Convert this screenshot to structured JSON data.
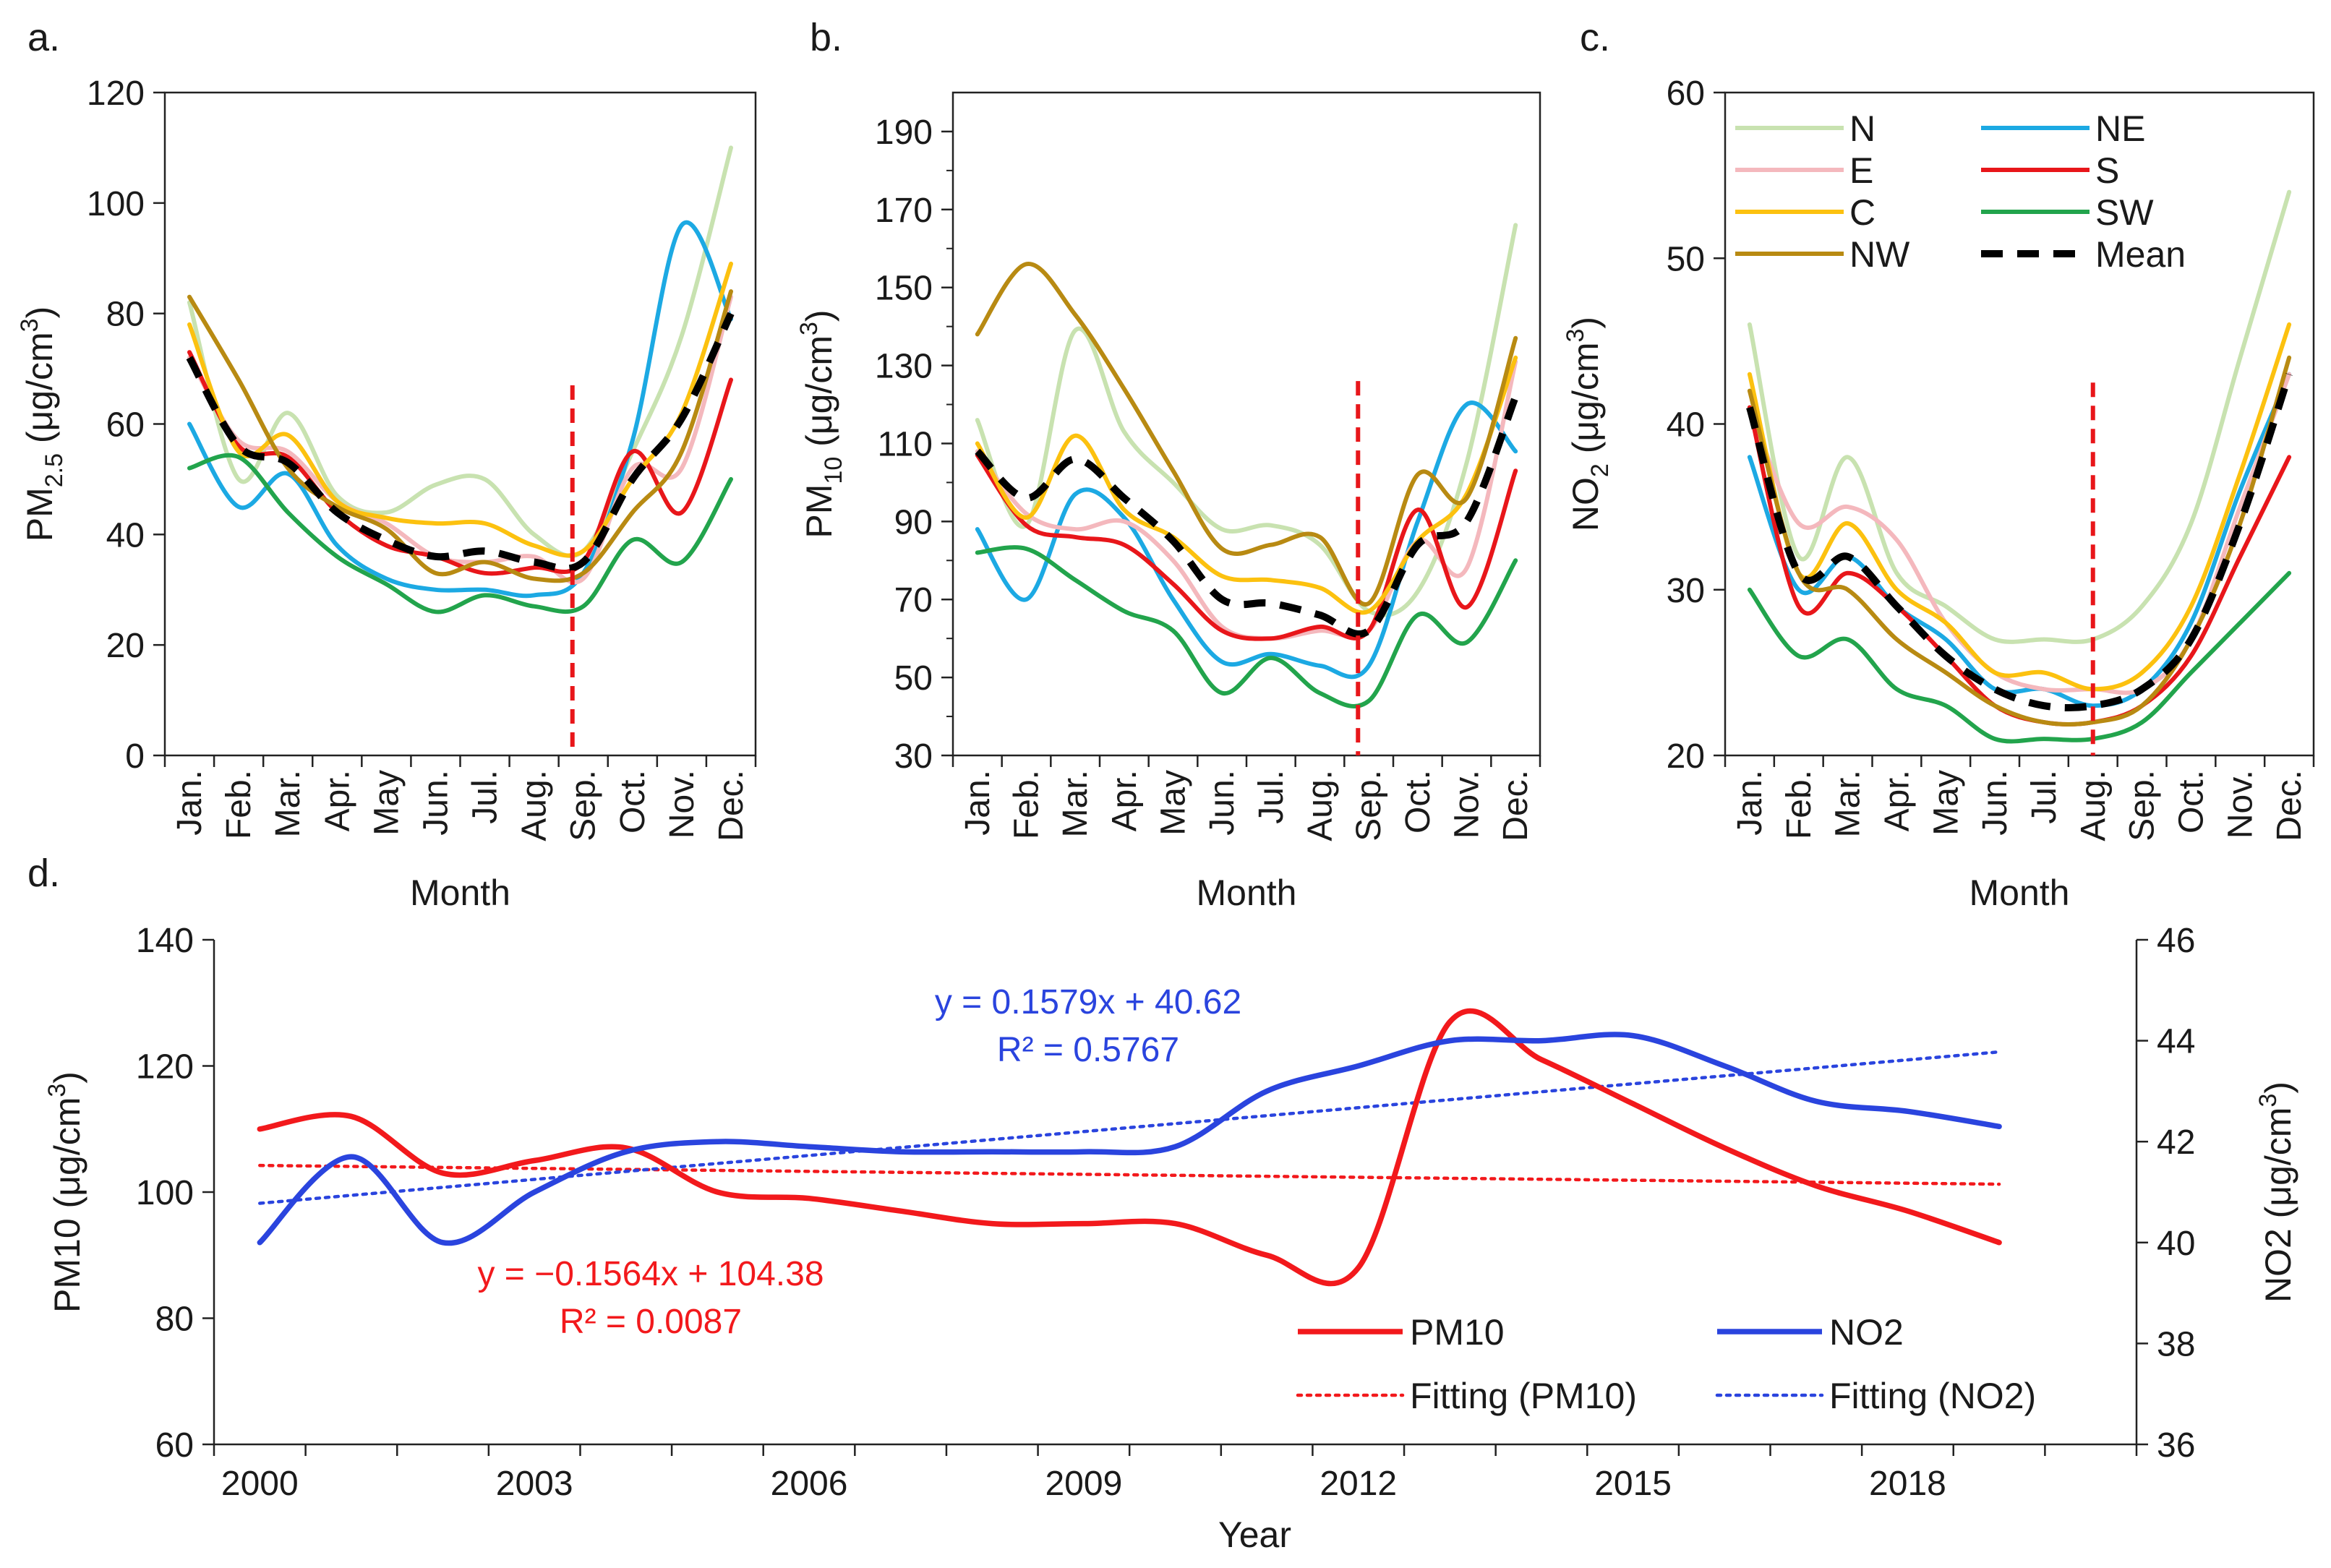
{
  "colors": {
    "N": "#c8e2b0",
    "NE": "#1ca9e3",
    "E": "#f4b8bd",
    "S": "#e8161a",
    "C": "#fcc10f",
    "SW": "#22a44c",
    "NW": "#b88a12",
    "Mean": "#000000",
    "cutoff": "#e8161a",
    "pm10_line": "#f2191c",
    "no2_line": "#2a44de"
  },
  "legend": {
    "entries": [
      {
        "key": "N",
        "label": "N",
        "dashed": false
      },
      {
        "key": "NE",
        "label": "NE",
        "dashed": false
      },
      {
        "key": "E",
        "label": "E",
        "dashed": false
      },
      {
        "key": "S",
        "label": "S",
        "dashed": false
      },
      {
        "key": "C",
        "label": "C",
        "dashed": false
      },
      {
        "key": "SW",
        "label": "SW",
        "dashed": false
      },
      {
        "key": "NW",
        "label": "NW",
        "dashed": false
      },
      {
        "key": "Mean",
        "label": "Mean",
        "dashed": true
      }
    ]
  },
  "panel_d_legend": {
    "pm10": "PM10",
    "no2": "NO2",
    "fit_pm10": "Fitting (PM10)",
    "fit_no2": "Fitting (NO2)"
  },
  "chart_data": [
    {
      "id": "a",
      "type": "line",
      "panel_label": "a.",
      "ylabel_main": "PM",
      "ylabel_sub": "2.5",
      "ylabel_tail": " (μg/cm",
      "ylabel_sup": "3",
      "ylabel_close": ")",
      "xlabel": "Month",
      "ylim": [
        0,
        120
      ],
      "yticks": [
        0,
        20,
        40,
        60,
        80,
        100,
        120
      ],
      "categories": [
        "Jan.",
        "Feb.",
        "Mar.",
        "Apr.",
        "May",
        "Jun.",
        "Jul.",
        "Aug.",
        "Sep.",
        "Oct.",
        "Nov.",
        "Dec."
      ],
      "cutoff_x": 7.78,
      "cutoff_ytop": 67,
      "series": [
        {
          "name": "N",
          "values": [
            82,
            50,
            62,
            47,
            44,
            49,
            50,
            40,
            37,
            55,
            76,
            110
          ]
        },
        {
          "name": "NE",
          "values": [
            60,
            45,
            51,
            38,
            32,
            30,
            30,
            29,
            33,
            57,
            96,
            79
          ]
        },
        {
          "name": "E",
          "values": [
            72,
            57,
            55,
            46,
            42,
            36,
            35,
            36,
            32,
            52,
            52,
            83
          ]
        },
        {
          "name": "S",
          "values": [
            73,
            56,
            54,
            44,
            38,
            36,
            33,
            34,
            35,
            55,
            44,
            68
          ]
        },
        {
          "name": "C",
          "values": [
            78,
            55,
            58,
            46,
            43,
            42,
            42,
            38,
            37,
            50,
            62,
            89
          ]
        },
        {
          "name": "SW",
          "values": [
            52,
            54,
            44,
            36,
            31,
            26,
            29,
            27,
            27,
            39,
            35,
            50
          ]
        },
        {
          "name": "NW",
          "values": [
            83,
            68,
            52,
            45,
            41,
            33,
            35,
            32,
            33,
            44,
            55,
            84
          ]
        },
        {
          "name": "Mean",
          "values": [
            72,
            56,
            53,
            44,
            39,
            36,
            37,
            35,
            35,
            50,
            61,
            80
          ]
        }
      ]
    },
    {
      "id": "b",
      "type": "line",
      "panel_label": "b.",
      "ylabel_main": "PM",
      "ylabel_sub": "10",
      "ylabel_tail": " (μg/cm",
      "ylabel_sup": "3",
      "ylabel_close": ")",
      "xlabel": "Month",
      "ylim": [
        30,
        200
      ],
      "yticks": [
        30,
        50,
        70,
        90,
        110,
        130,
        150,
        170,
        190
      ],
      "categories": [
        "Jan.",
        "Feb.",
        "Mar.",
        "Apr.",
        "May",
        "Jun.",
        "Jul.",
        "Aug.",
        "Sep.",
        "Oct.",
        "Nov.",
        "Dec."
      ],
      "cutoff_x": 7.78,
      "cutoff_ytop": 126,
      "series": [
        {
          "name": "N",
          "values": [
            116,
            89,
            139,
            113,
            100,
            88,
            89,
            84,
            67,
            72,
            105,
            166
          ]
        },
        {
          "name": "NE",
          "values": [
            88,
            70,
            97,
            91,
            70,
            54,
            56,
            53,
            53,
            90,
            120,
            108
          ]
        },
        {
          "name": "E",
          "values": [
            108,
            92,
            88,
            90,
            80,
            63,
            60,
            62,
            62,
            85,
            78,
            131
          ]
        },
        {
          "name": "S",
          "values": [
            107,
            89,
            86,
            84,
            74,
            62,
            60,
            63,
            62,
            93,
            68,
            103
          ]
        },
        {
          "name": "C",
          "values": [
            110,
            91,
            112,
            93,
            86,
            76,
            75,
            73,
            67,
            85,
            97,
            132
          ]
        },
        {
          "name": "SW",
          "values": [
            82,
            83,
            75,
            67,
            62,
            46,
            55,
            46,
            44,
            66,
            59,
            80
          ]
        },
        {
          "name": "NW",
          "values": [
            138,
            156,
            143,
            124,
            103,
            83,
            84,
            86,
            69,
            102,
            96,
            137
          ]
        },
        {
          "name": "Mean",
          "values": [
            108,
            96,
            106,
            96,
            85,
            70,
            69,
            66,
            62,
            84,
            90,
            122
          ]
        }
      ]
    },
    {
      "id": "c",
      "type": "line",
      "panel_label": "c.",
      "ylabel_main": "NO",
      "ylabel_sub": "2",
      "ylabel_tail": " (μg/cm",
      "ylabel_sup": "3",
      "ylabel_close": ")",
      "xlabel": "Month",
      "ylim": [
        20,
        60
      ],
      "yticks": [
        20,
        30,
        40,
        50,
        60
      ],
      "categories": [
        "Jan.",
        "Feb.",
        "Mar.",
        "Apr.",
        "May",
        "Jun.",
        "Jul.",
        "Aug.",
        "Sep.",
        "Oct.",
        "Nov.",
        "Dec."
      ],
      "cutoff_x": 7.0,
      "cutoff_ytop": 42.5,
      "series": [
        {
          "name": "N",
          "values": [
            46,
            32,
            38,
            31,
            29,
            27,
            27,
            27,
            29,
            34,
            44,
            54
          ]
        },
        {
          "name": "NE",
          "values": [
            38,
            30,
            32,
            29,
            27,
            24,
            24,
            23,
            24,
            28,
            36,
            43
          ]
        },
        {
          "name": "E",
          "values": [
            41,
            34,
            35,
            33,
            28,
            25,
            24,
            24,
            24,
            27,
            35,
            43
          ]
        },
        {
          "name": "S",
          "values": [
            41,
            29,
            31,
            29,
            26,
            23,
            22,
            22,
            23,
            26,
            32,
            38
          ]
        },
        {
          "name": "C",
          "values": [
            43,
            31,
            34,
            30,
            28,
            25,
            25,
            24,
            25,
            29,
            37,
            46
          ]
        },
        {
          "name": "SW",
          "values": [
            30,
            26,
            27,
            24,
            23,
            21,
            21,
            21,
            22,
            25,
            28,
            31
          ]
        },
        {
          "name": "NW",
          "values": [
            42,
            31,
            30,
            27,
            25,
            23,
            22,
            22,
            23,
            27,
            34,
            44
          ]
        },
        {
          "name": "Mean",
          "values": [
            41,
            31,
            32,
            29,
            26,
            24,
            23,
            23,
            24,
            27,
            34,
            43
          ]
        }
      ]
    },
    {
      "id": "d",
      "type": "line",
      "panel_label": "d.",
      "ylabel_left": "PM10 (μg/cm",
      "ylabel_left_sup": "3",
      "ylabel_left_close": ")",
      "ylabel_right": "NO2 (μg/cm",
      "ylabel_right_sup": "3",
      "ylabel_right_close": ")",
      "xlabel": "Year",
      "xlim": [
        1999,
        2020
      ],
      "xticks": [
        2000,
        2003,
        2006,
        2009,
        2012,
        2015,
        2018
      ],
      "ylim_left": [
        60,
        140
      ],
      "yticks_left": [
        60,
        80,
        100,
        120,
        140
      ],
      "ylim_right": [
        36,
        46
      ],
      "yticks_right": [
        36,
        38,
        40,
        42,
        44,
        46
      ],
      "series": [
        {
          "name": "PM10",
          "axis": "left",
          "x": [
            2000,
            2001,
            2002,
            2003,
            2004,
            2005,
            2006,
            2007,
            2008,
            2009,
            2010,
            2011,
            2012,
            2013,
            2014,
            2015,
            2016,
            2017,
            2018,
            2019
          ],
          "values": [
            110,
            112,
            103,
            105,
            107,
            100,
            99,
            97,
            95,
            95,
            95,
            90,
            88,
            127,
            121,
            114,
            107,
            101,
            97,
            92
          ]
        },
        {
          "name": "NO2",
          "axis": "right",
          "x": [
            2000,
            2001,
            2002,
            2003,
            2004,
            2005,
            2006,
            2007,
            2008,
            2009,
            2010,
            2011,
            2012,
            2013,
            2014,
            2015,
            2016,
            2017,
            2018,
            2019
          ],
          "values": [
            40.0,
            41.7,
            40.0,
            41.0,
            41.8,
            42.0,
            41.9,
            41.8,
            41.8,
            41.8,
            41.9,
            43.0,
            43.5,
            44.0,
            44.0,
            44.1,
            43.5,
            42.8,
            42.6,
            42.3
          ]
        }
      ],
      "fits": [
        {
          "name": "Fitting (PM10)",
          "axis": "left",
          "slope": -0.1564,
          "intercept": 104.38,
          "x_start": 2000,
          "x_end": 2019
        },
        {
          "name": "Fitting (NO2)",
          "axis": "right",
          "slope": 0.1579,
          "intercept": 40.62,
          "x_start": 2000,
          "x_end": 2019
        }
      ],
      "annotations": {
        "pm10_eq": "y = −0.1564x + 104.38",
        "pm10_r2": "R² = 0.0087",
        "no2_eq": "y = 0.1579x + 40.62",
        "no2_r2": "R² = 0.5767"
      }
    }
  ]
}
